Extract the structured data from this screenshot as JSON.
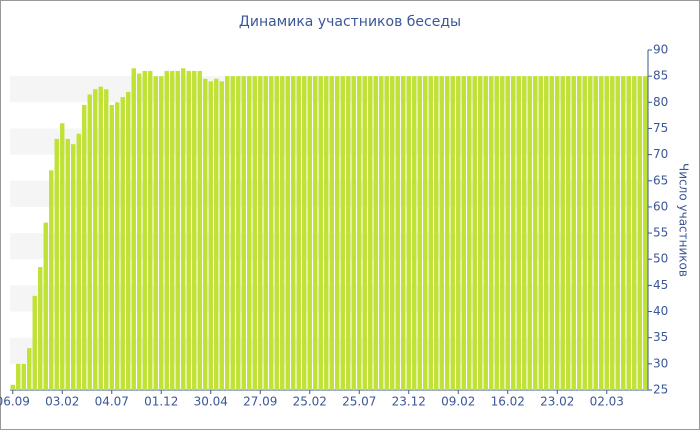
{
  "chart_data": {
    "type": "bar",
    "title": "Динамика участников беседы",
    "y_axis_label": "Число участников",
    "color": "#bfe234",
    "categories": [
      "06.09",
      null,
      null,
      null,
      null,
      null,
      null,
      null,
      null,
      "03.02",
      null,
      null,
      null,
      null,
      null,
      null,
      null,
      null,
      "04.07",
      null,
      null,
      null,
      null,
      null,
      null,
      null,
      null,
      "01.12",
      null,
      null,
      null,
      null,
      null,
      null,
      null,
      null,
      "30.04",
      null,
      null,
      null,
      null,
      null,
      null,
      null,
      null,
      "27.09",
      null,
      null,
      null,
      null,
      null,
      null,
      null,
      null,
      "25.02",
      null,
      null,
      null,
      null,
      null,
      null,
      null,
      null,
      "25.07",
      null,
      null,
      null,
      null,
      null,
      null,
      null,
      null,
      "23.12",
      null,
      null,
      null,
      null,
      null,
      null,
      null,
      null,
      "09.02",
      null,
      null,
      null,
      null,
      null,
      null,
      null,
      null,
      "16.02",
      null,
      null,
      null,
      null,
      null,
      null,
      null,
      null,
      "23.02",
      null,
      null,
      null,
      null,
      null,
      null,
      null,
      null,
      "02.03",
      null,
      null,
      null,
      null,
      null,
      null,
      null
    ],
    "values": [
      26,
      30,
      30,
      33,
      43,
      48.5,
      57,
      67,
      73,
      76,
      73,
      72,
      74,
      79.5,
      81.5,
      82.5,
      83,
      82.5,
      79.5,
      80,
      81,
      82,
      86.5,
      85.5,
      86,
      86,
      85,
      85,
      86,
      86,
      86,
      86.5,
      86,
      86,
      86,
      84.5,
      84,
      84.5,
      84,
      85,
      85,
      85,
      85,
      85,
      85,
      85,
      85,
      85,
      85,
      85,
      85,
      85,
      85,
      85,
      85,
      85,
      85,
      85,
      85,
      85,
      85,
      85,
      85,
      85,
      85,
      85,
      85,
      85,
      85,
      85,
      85,
      85,
      85,
      85,
      85,
      85,
      85,
      85,
      85,
      85,
      85,
      85,
      85,
      85,
      85,
      85,
      85,
      85,
      85,
      85,
      85,
      85,
      85,
      85,
      85,
      85,
      85,
      85,
      85,
      85,
      85,
      85,
      85,
      85,
      85,
      85,
      85,
      85,
      85,
      85,
      85,
      85,
      85,
      85,
      85,
      85
    ],
    "ylim": [
      25,
      90
    ],
    "yticks": [
      25,
      30,
      35,
      40,
      45,
      50,
      55,
      60,
      65,
      70,
      75,
      80,
      85,
      90
    ],
    "grid": true
  }
}
